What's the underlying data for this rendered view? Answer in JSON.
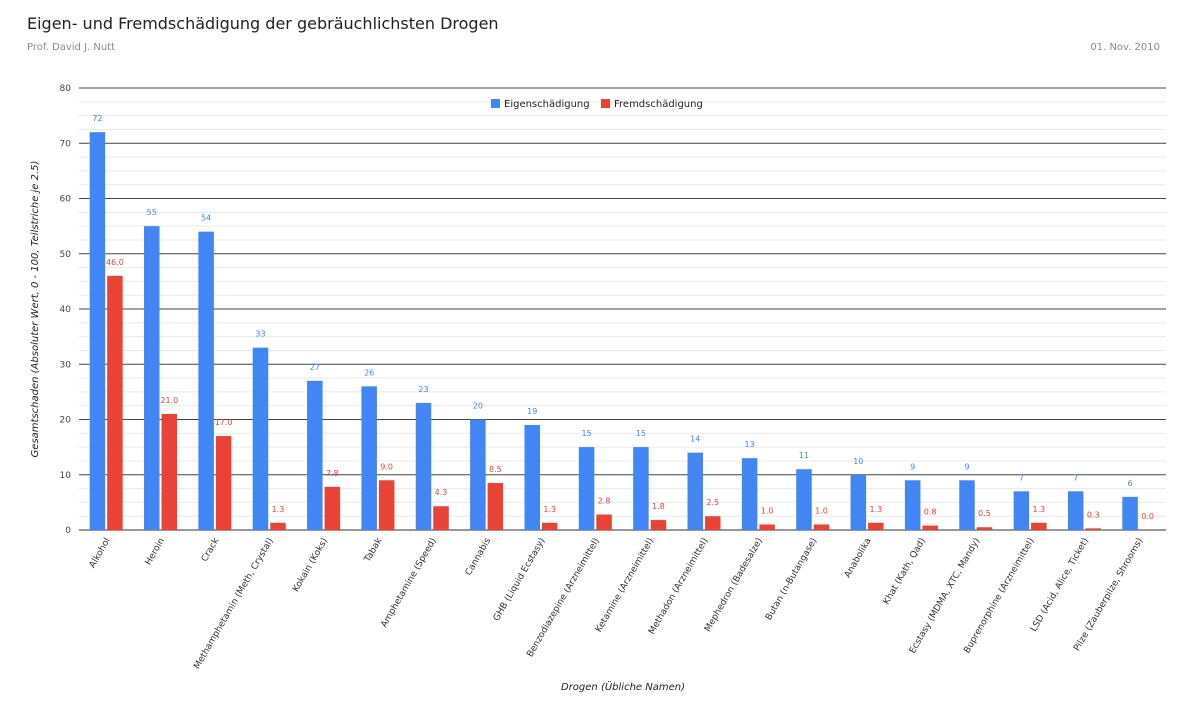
{
  "header": {
    "title": "Eigen- und Fremdschädigung der gebräuchlichsten Drogen",
    "author": "Prof. David J. Nutt",
    "date": "01. Nov. 2010"
  },
  "colors": {
    "series_eigen": "#4285f4",
    "series_fremd": "#ea4335",
    "axis": "#333333"
  },
  "chart_data": {
    "type": "bar",
    "title": "Eigen- und Fremdschädigung der gebräuchlichsten Drogen",
    "xlabel": "Drogen (Übliche Namen)",
    "ylabel": "Gesamtschaden (Absoluter Wert, 0 - 100, Teilstriche je 2.5)",
    "ylim": [
      0,
      80
    ],
    "yticks": [
      0,
      10,
      20,
      30,
      40,
      50,
      60,
      70,
      80
    ],
    "minor_step": 2.5,
    "grid": true,
    "legend_position": "top-center",
    "categories": [
      "Alkohol",
      "Heroin",
      "Crack",
      "Methamphetamin (Meth, Crystal)",
      "Kokain (Koks)",
      "Tabak",
      "Amphetamine (Speed)",
      "Cannabis",
      "GHB (Liquid Ecstasy)",
      "Benzodiazepine (Arzneimittel)",
      "Ketamine (Arzneimittel)",
      "Methadon (Arzneimittel)",
      "Mephedron (Badesalze)",
      "Butan (n-Butangase)",
      "Anabolika",
      "Khat (Kath, Qad)",
      "Ecstasy (MDMA, XTC, Mandy)",
      "Buprenorphine (Arzneimittel)",
      "LSD (Acid, Alice, Ticket)",
      "Pilze (Zauberpilze, Shrooms)"
    ],
    "series": [
      {
        "name": "Eigenschädigung",
        "values": [
          72,
          55,
          54,
          33,
          27,
          26,
          23,
          20,
          19,
          15,
          15,
          14,
          13,
          11,
          10,
          9,
          9,
          7,
          7,
          6
        ],
        "labels": [
          "72",
          "55",
          "54",
          "33",
          "27",
          "26",
          "23",
          "20",
          "19",
          "15",
          "15",
          "14",
          "13",
          "11",
          "10",
          "9",
          "9",
          "7",
          "7",
          "6"
        ]
      },
      {
        "name": "Fremdschädigung",
        "values": [
          46.0,
          21.0,
          17.0,
          1.3,
          7.8,
          9.0,
          4.3,
          8.5,
          1.3,
          2.8,
          1.8,
          2.5,
          1.0,
          1.0,
          1.3,
          0.8,
          0.5,
          1.3,
          0.3,
          0.0
        ],
        "labels": [
          "46.0",
          "21.0",
          "17.0",
          "1.3",
          "7.8",
          "9.0",
          "4.3",
          "8.5",
          "1.3",
          "2.8",
          "1.8",
          "2.5",
          "1.0",
          "1.0",
          "1.3",
          "0.8",
          "0.5",
          "1.3",
          "0.3",
          "0.0"
        ]
      }
    ]
  }
}
